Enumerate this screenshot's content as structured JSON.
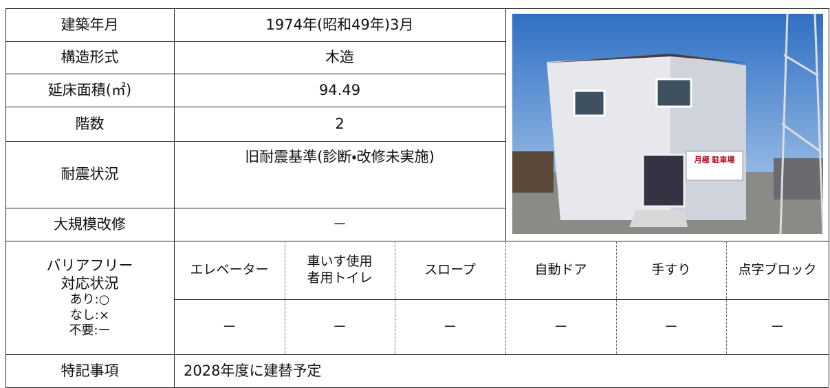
{
  "rows": [
    {
      "label": "建築年月",
      "value": "1974年(昭和49年)3月"
    },
    {
      "label": "構造形式",
      "value": "木造"
    },
    {
      "label": "延床面積(㎡)",
      "value": "94.49"
    },
    {
      "label": "階数",
      "value": "2"
    },
    {
      "label": "耐震状況",
      "value": "旧耐震基準(診断・改修未実施)"
    },
    {
      "label": "大規模改修",
      "value": "－"
    }
  ],
  "barrier_free": {
    "label_lines": [
      "バリアフリー",
      "対応状況",
      "あり:○",
      "なし:×",
      "不要:ー"
    ],
    "columns": [
      {
        "header_lines": [
          "エレベーター"
        ],
        "value": "－"
      },
      {
        "header_lines": [
          "車いす使用",
          "者用トイレ"
        ],
        "value": "－"
      },
      {
        "header_lines": [
          "スロープ"
        ],
        "value": "－"
      },
      {
        "header_lines": [
          "自動ドア"
        ],
        "value": "－"
      },
      {
        "header_lines": [
          "手すり"
        ],
        "value": "－"
      },
      {
        "header_lines": [
          "点字ブロック"
        ],
        "value": "－"
      }
    ]
  },
  "notes": {
    "label": "特記事項",
    "value": "2028年度に建替予定"
  },
  "photo": {
    "sign": "月極 駐車場"
  }
}
